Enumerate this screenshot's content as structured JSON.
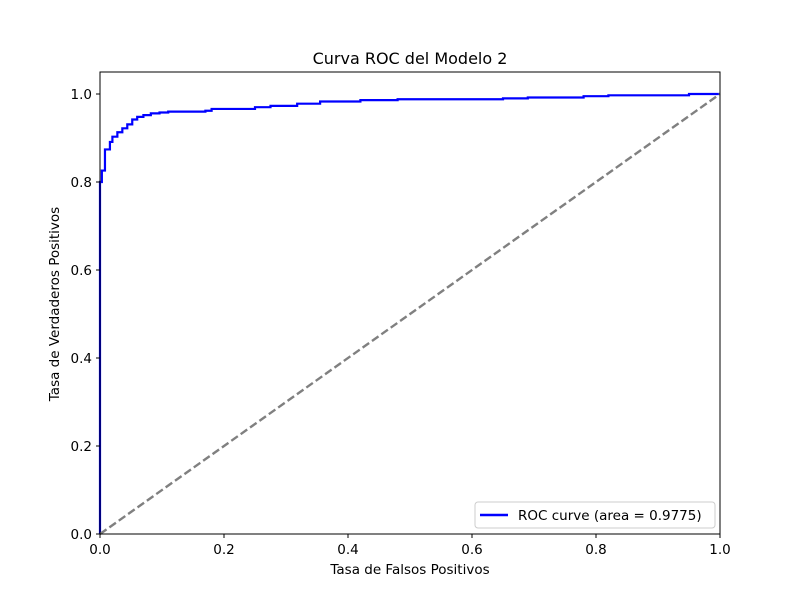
{
  "chart_data": {
    "type": "line",
    "title": "Curva ROC del Modelo 2",
    "xlabel": "Tasa de Falsos Positivos",
    "ylabel": "Tasa de Verdaderos Positivos",
    "xlim": [
      0.0,
      1.0
    ],
    "ylim": [
      0.0,
      1.05
    ],
    "xticks": [
      0.0,
      0.2,
      0.4,
      0.6,
      0.8,
      1.0
    ],
    "xtick_labels": [
      "0.0",
      "0.2",
      "0.4",
      "0.6",
      "0.8",
      "1.0"
    ],
    "yticks": [
      0.0,
      0.2,
      0.4,
      0.6,
      0.8,
      1.0
    ],
    "ytick_labels": [
      "0.0",
      "0.2",
      "0.4",
      "0.6",
      "0.8",
      "1.0"
    ],
    "grid": false,
    "legend_position": "lower-right",
    "series": [
      {
        "name": "ROC curve (area = 0.9775)",
        "color": "#0000ff",
        "style": "solid",
        "x": [
          0.0,
          0.0,
          0.003,
          0.003,
          0.008,
          0.008,
          0.016,
          0.016,
          0.02,
          0.02,
          0.028,
          0.028,
          0.036,
          0.036,
          0.044,
          0.044,
          0.052,
          0.052,
          0.06,
          0.06,
          0.07,
          0.07,
          0.082,
          0.082,
          0.096,
          0.096,
          0.11,
          0.11,
          0.17,
          0.17,
          0.18,
          0.18,
          0.25,
          0.25,
          0.275,
          0.275,
          0.318,
          0.318,
          0.355,
          0.355,
          0.42,
          0.42,
          0.48,
          0.48,
          0.65,
          0.65,
          0.69,
          0.69,
          0.78,
          0.78,
          0.82,
          0.82,
          0.95,
          0.95,
          1.0
        ],
        "y": [
          0.0,
          0.8,
          0.8,
          0.826,
          0.826,
          0.874,
          0.874,
          0.891,
          0.891,
          0.903,
          0.903,
          0.913,
          0.913,
          0.922,
          0.922,
          0.931,
          0.931,
          0.942,
          0.942,
          0.948,
          0.948,
          0.952,
          0.952,
          0.956,
          0.956,
          0.958,
          0.958,
          0.96,
          0.96,
          0.962,
          0.962,
          0.966,
          0.966,
          0.97,
          0.97,
          0.973,
          0.973,
          0.978,
          0.978,
          0.983,
          0.983,
          0.986,
          0.986,
          0.988,
          0.988,
          0.99,
          0.99,
          0.992,
          0.992,
          0.995,
          0.995,
          0.997,
          0.997,
          1.0,
          1.0
        ]
      },
      {
        "name": "",
        "color": "#808080",
        "style": "dashed",
        "x": [
          0.0,
          1.0
        ],
        "y": [
          0.0,
          1.0
        ]
      }
    ]
  }
}
